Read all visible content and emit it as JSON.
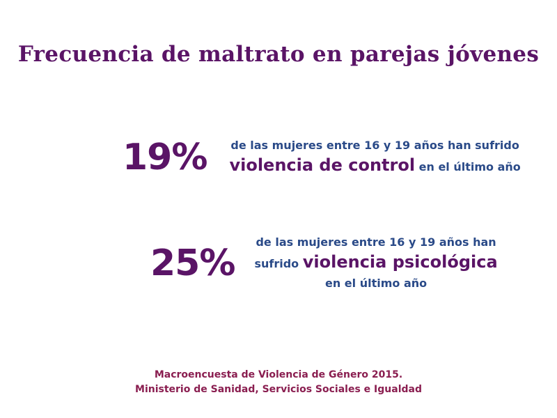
{
  "title": "Frecuencia de maltrato en parejas jóvenes",
  "stats": [
    {
      "percent": "19%",
      "line1": "de las mujeres entre 16 y 19 años han sufrido",
      "emphasis": "violencia de control",
      "line2_suffix": "en el último año"
    },
    {
      "percent": "25%",
      "line1": "de las mujeres entre 16 y 19 años han",
      "line2_prefix": "sufrido",
      "emphasis": "violencia psicológica",
      "line3": "en el último año"
    }
  ],
  "source": {
    "line1": "Macroencuesta de Violencia de Género 2015.",
    "line2": "Ministerio de Sanidad, Servicios Sociales e Igualdad"
  },
  "colors": {
    "title": "#5a1466",
    "percent": "#5a1466",
    "emphasis": "#5a1466",
    "body_text": "#2a4a88",
    "source": "#8a1e50"
  }
}
